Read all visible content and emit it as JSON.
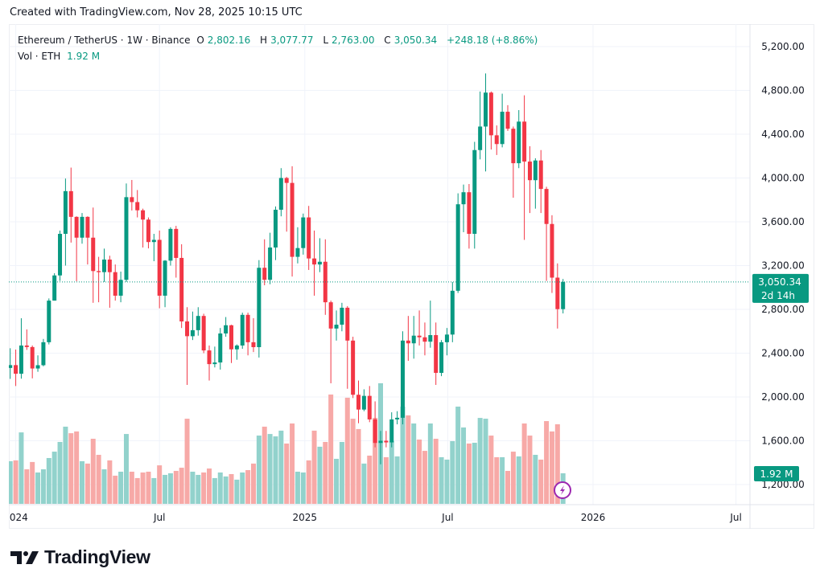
{
  "header": {
    "created": "Created with TradingView.com, Nov 28, 2025 10:15 UTC"
  },
  "legend": {
    "symbol": "Ethereum / TetherUS · 1W · Binance",
    "o_label": "O",
    "o_value": "2,802.16",
    "h_label": "H",
    "h_value": "3,077.77",
    "l_label": "L",
    "l_value": "2,763.00",
    "c_label": "C",
    "c_value": "3,050.34",
    "change": "+248.18 (+8.86%)",
    "vol_label": "Vol · ETH",
    "vol_value": "1.92 M"
  },
  "price_badge": {
    "price": "3,050.34",
    "countdown": "2d 14h"
  },
  "volume_badge": "1.92 M",
  "logo": "TradingView",
  "colors": {
    "up": "#089981",
    "down": "#f23645",
    "vol_up": "#92d2cc",
    "vol_down": "#f7a9a7",
    "badge": "#089981",
    "lightning": "#9c27b0"
  },
  "icons": {
    "lightning": "lightning-icon"
  },
  "chart_data": {
    "type": "candlestick",
    "interval": "1W",
    "ylim": [
      1100,
      5300
    ],
    "grid": true,
    "last_price": 3050.34,
    "price_ticks": [
      "1,200.00",
      "1,600.00",
      "2,000.00",
      "2,400.00",
      "2,800.00",
      "3,200.00",
      "3,600.00",
      "4,000.00",
      "4,400.00",
      "4,800.00",
      "5,200.00"
    ],
    "time_ticks": [
      {
        "label": "2024",
        "date": "2024-01-01"
      },
      {
        "label": "Jul",
        "date": "2024-07-01"
      },
      {
        "label": "2025",
        "date": "2025-01-01"
      },
      {
        "label": "Jul",
        "date": "2025-07-01"
      },
      {
        "label": "2026",
        "date": "2026-01-01"
      },
      {
        "label": "Jul",
        "date": "2026-07-01"
      }
    ],
    "volume_unit": "M ETH",
    "candles": [
      [
        "2023-12-25",
        2265,
        2445,
        2165,
        2291,
        2.68
      ],
      [
        "2024-01-01",
        2291,
        2433,
        2100,
        2212,
        2.73
      ],
      [
        "2024-01-08",
        2212,
        2719,
        2167,
        2470,
        4.49
      ],
      [
        "2024-01-15",
        2470,
        2617,
        2430,
        2456,
        2.17
      ],
      [
        "2024-01-22",
        2456,
        2470,
        2170,
        2260,
        2.63
      ],
      [
        "2024-01-29",
        2260,
        2380,
        2230,
        2290,
        1.97
      ],
      [
        "2024-02-05",
        2290,
        2530,
        2280,
        2500,
        2.17
      ],
      [
        "2024-02-12",
        2500,
        2900,
        2480,
        2880,
        2.88
      ],
      [
        "2024-02-19",
        2880,
        3130,
        2880,
        3110,
        3.28
      ],
      [
        "2024-02-26",
        3110,
        3520,
        3060,
        3490,
        3.89
      ],
      [
        "2024-03-04",
        3490,
        3995,
        3200,
        3880,
        4.85
      ],
      [
        "2024-03-11",
        3880,
        4095,
        3410,
        3645,
        4.44
      ],
      [
        "2024-03-18",
        3645,
        3650,
        3057,
        3455,
        4.55
      ],
      [
        "2024-03-25",
        3455,
        3680,
        3400,
        3645,
        2.68
      ],
      [
        "2024-04-01",
        3645,
        3650,
        3210,
        3455,
        2.53
      ],
      [
        "2024-04-08",
        3455,
        3730,
        2860,
        3150,
        4.09
      ],
      [
        "2024-04-15",
        3150,
        3280,
        2865,
        3140,
        3.08
      ],
      [
        "2024-04-22",
        3140,
        3355,
        3050,
        3255,
        2.17
      ],
      [
        "2024-04-29",
        3255,
        3290,
        2815,
        3140,
        2.73
      ],
      [
        "2024-05-06",
        3140,
        3210,
        2880,
        2925,
        1.77
      ],
      [
        "2024-05-13",
        2925,
        3145,
        2865,
        3070,
        2.02
      ],
      [
        "2024-05-20",
        3070,
        3950,
        3050,
        3825,
        4.39
      ],
      [
        "2024-05-27",
        3825,
        3982,
        3703,
        3780,
        2.02
      ],
      [
        "2024-06-03",
        3780,
        3890,
        3640,
        3705,
        1.62
      ],
      [
        "2024-06-10",
        3705,
        3720,
        3365,
        3620,
        1.97
      ],
      [
        "2024-06-17",
        3620,
        3640,
        3357,
        3415,
        2.02
      ],
      [
        "2024-06-24",
        3415,
        3490,
        3240,
        3435,
        1.62
      ],
      [
        "2024-07-01",
        3435,
        3520,
        2810,
        2925,
        2.42
      ],
      [
        "2024-07-08",
        2925,
        3250,
        2820,
        3245,
        1.82
      ],
      [
        "2024-07-15",
        3245,
        3550,
        3200,
        3535,
        1.92
      ],
      [
        "2024-07-22",
        3535,
        3563,
        3090,
        3270,
        2.07
      ],
      [
        "2024-07-29",
        3270,
        3395,
        2630,
        2690,
        2.27
      ],
      [
        "2024-08-05",
        2690,
        2820,
        2110,
        2555,
        5.35
      ],
      [
        "2024-08-12",
        2555,
        2780,
        2520,
        2610,
        2.02
      ],
      [
        "2024-08-19",
        2610,
        2820,
        2560,
        2740,
        1.82
      ],
      [
        "2024-08-26",
        2740,
        2760,
        2400,
        2425,
        1.97
      ],
      [
        "2024-09-02",
        2425,
        2470,
        2150,
        2300,
        2.22
      ],
      [
        "2024-09-09",
        2300,
        2460,
        2270,
        2315,
        1.62
      ],
      [
        "2024-09-16",
        2315,
        2630,
        2250,
        2580,
        1.97
      ],
      [
        "2024-09-23",
        2580,
        2730,
        2550,
        2655,
        1.72
      ],
      [
        "2024-09-30",
        2655,
        2660,
        2310,
        2435,
        1.87
      ],
      [
        "2024-10-07",
        2435,
        2480,
        2340,
        2470,
        1.52
      ],
      [
        "2024-10-14",
        2470,
        2770,
        2440,
        2750,
        1.97
      ],
      [
        "2024-10-21",
        2750,
        2770,
        2380,
        2500,
        2.12
      ],
      [
        "2024-10-28",
        2500,
        2720,
        2410,
        2455,
        2.53
      ],
      [
        "2024-11-04",
        2455,
        3250,
        2360,
        3180,
        4.29
      ],
      [
        "2024-11-11",
        3180,
        3440,
        3020,
        3070,
        4.85
      ],
      [
        "2024-11-18",
        3070,
        3500,
        3030,
        3365,
        4.39
      ],
      [
        "2024-11-25",
        3365,
        3740,
        3250,
        3710,
        4.24
      ],
      [
        "2024-12-02",
        3710,
        4090,
        3650,
        4000,
        4.6
      ],
      [
        "2024-12-09",
        4000,
        4010,
        3510,
        3955,
        3.79
      ],
      [
        "2024-12-16",
        3955,
        4107,
        3100,
        3280,
        5.05
      ],
      [
        "2024-12-23",
        3280,
        3550,
        3220,
        3360,
        2.02
      ],
      [
        "2024-12-30",
        3360,
        3675,
        3300,
        3640,
        1.97
      ],
      [
        "2025-01-06",
        3640,
        3745,
        3160,
        3265,
        2.73
      ],
      [
        "2025-01-13",
        3265,
        3520,
        2925,
        3210,
        4.6
      ],
      [
        "2025-01-20",
        3210,
        3450,
        3140,
        3235,
        3.59
      ],
      [
        "2025-01-27",
        3235,
        3440,
        2750,
        2865,
        3.89
      ],
      [
        "2025-02-03",
        2865,
        2880,
        2125,
        2625,
        6.87
      ],
      [
        "2025-02-10",
        2625,
        2790,
        2515,
        2660,
        2.83
      ],
      [
        "2025-02-17",
        2660,
        2860,
        2600,
        2815,
        3.89
      ],
      [
        "2025-02-24",
        2815,
        2830,
        2075,
        2515,
        6.67
      ],
      [
        "2025-03-03",
        2515,
        2550,
        1990,
        2020,
        5.35
      ],
      [
        "2025-03-10",
        2020,
        2150,
        1760,
        1885,
        4.7
      ],
      [
        "2025-03-17",
        1885,
        2070,
        1870,
        2010,
        2.53
      ],
      [
        "2025-03-24",
        2010,
        2100,
        1770,
        1795,
        3.03
      ],
      [
        "2025-03-31",
        1795,
        1960,
        1540,
        1580,
        5.4
      ],
      [
        "2025-04-07",
        1580,
        1690,
        1385,
        1600,
        7.58
      ],
      [
        "2025-04-14",
        1600,
        1690,
        1540,
        1585,
        2.93
      ],
      [
        "2025-04-21",
        1585,
        1860,
        1540,
        1795,
        3.94
      ],
      [
        "2025-04-28",
        1795,
        1870,
        1750,
        1810,
        2.98
      ],
      [
        "2025-05-05",
        1810,
        2600,
        1750,
        2515,
        6.11
      ],
      [
        "2025-05-12",
        2515,
        2740,
        2330,
        2490,
        5.56
      ],
      [
        "2025-05-19",
        2490,
        2740,
        2350,
        2560,
        5.05
      ],
      [
        "2025-05-26",
        2560,
        2790,
        2470,
        2545,
        4.04
      ],
      [
        "2025-06-02",
        2545,
        2680,
        2380,
        2505,
        3.33
      ],
      [
        "2025-06-09",
        2505,
        2880,
        2450,
        2565,
        5.05
      ],
      [
        "2025-06-16",
        2565,
        2680,
        2110,
        2220,
        4.09
      ],
      [
        "2025-06-23",
        2220,
        2520,
        2190,
        2500,
        2.93
      ],
      [
        "2025-06-30",
        2500,
        2630,
        2380,
        2570,
        2.78
      ],
      [
        "2025-07-07",
        2570,
        3050,
        2500,
        2970,
        3.94
      ],
      [
        "2025-07-14",
        2970,
        3860,
        2950,
        3760,
        6.11
      ],
      [
        "2025-07-21",
        3760,
        3940,
        3505,
        3870,
        4.8
      ],
      [
        "2025-07-28",
        3870,
        3945,
        3355,
        3490,
        3.79
      ],
      [
        "2025-08-04",
        3490,
        4330,
        3355,
        4255,
        3.84
      ],
      [
        "2025-08-11",
        4255,
        4790,
        4170,
        4470,
        5.4
      ],
      [
        "2025-08-18",
        4470,
        4955,
        4060,
        4780,
        5.35
      ],
      [
        "2025-08-25",
        4780,
        4790,
        4260,
        4390,
        4.29
      ],
      [
        "2025-09-01",
        4390,
        4480,
        4210,
        4310,
        2.93
      ],
      [
        "2025-09-08",
        4310,
        4770,
        4280,
        4605,
        2.93
      ],
      [
        "2025-09-15",
        4605,
        4665,
        4430,
        4450,
        2.07
      ],
      [
        "2025-09-22",
        4450,
        4470,
        3820,
        4135,
        3.28
      ],
      [
        "2025-09-29",
        4135,
        4620,
        4090,
        4515,
        2.98
      ],
      [
        "2025-10-06",
        4515,
        4755,
        3435,
        4150,
        5.05
      ],
      [
        "2025-10-13",
        4150,
        4290,
        3680,
        3980,
        4.29
      ],
      [
        "2025-10-20",
        3980,
        4180,
        3720,
        4160,
        3.08
      ],
      [
        "2025-10-27",
        4160,
        4255,
        3680,
        3900,
        2.78
      ],
      [
        "2025-11-03",
        3900,
        3920,
        3060,
        3580,
        5.2
      ],
      [
        "2025-11-10",
        3580,
        3660,
        2950,
        3090,
        4.55
      ],
      [
        "2025-11-17",
        3090,
        3220,
        2625,
        2802.16,
        5.0
      ],
      [
        "2025-11-24",
        2802.16,
        3077.77,
        2763,
        3050.34,
        1.92
      ]
    ]
  }
}
